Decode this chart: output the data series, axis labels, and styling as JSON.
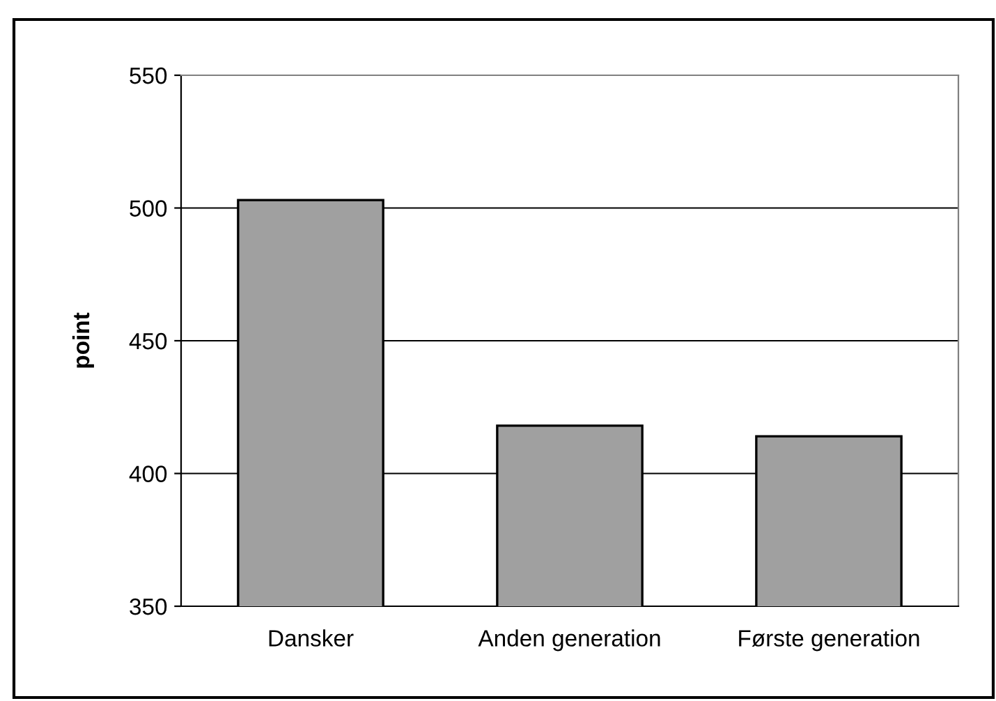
{
  "chart_data": {
    "type": "bar",
    "ylabel": "point",
    "categories": [
      "Dansker",
      "Anden generation",
      "Første generation"
    ],
    "values": [
      503,
      418,
      414
    ],
    "color": "#a0a0a0",
    "ylim": [
      350,
      550
    ],
    "yticks": [
      350,
      400,
      450,
      500,
      550
    ],
    "grid": "y",
    "legend": false
  }
}
